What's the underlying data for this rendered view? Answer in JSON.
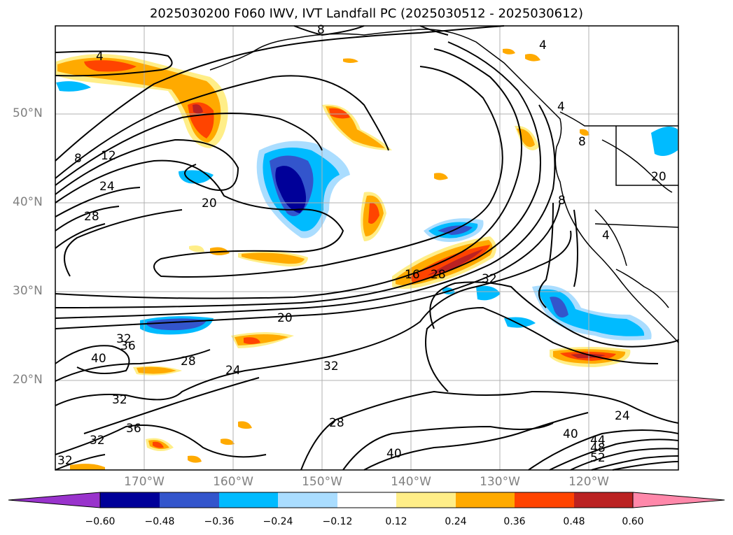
{
  "title": "2025030200 F060 IWV, IVT Landfall PC (2025030512 - 2025030612)",
  "colors": {
    "frame": "#000000",
    "grid": "#b0b0b0",
    "coast": "#000000",
    "axis_label": "#808080"
  },
  "map": {
    "lat_labels": [
      "50°N",
      "40°N",
      "30°N",
      "20°N"
    ],
    "lon_labels": [
      "170°W",
      "160°W",
      "150°W",
      "140°W",
      "130°W",
      "120°W"
    ],
    "contour_labels": [
      "4",
      "8",
      "12",
      "24",
      "28",
      "20",
      "8",
      "4",
      "4",
      "8",
      "8",
      "4",
      "20",
      "32",
      "16",
      "28",
      "32",
      "20",
      "32",
      "36",
      "40",
      "28",
      "24",
      "32",
      "28",
      "36",
      "32",
      "40",
      "32",
      "24",
      "40",
      "44",
      "48",
      "52"
    ]
  },
  "colorbar": {
    "extend": "both",
    "colors": [
      "#9933cc",
      "#000099",
      "#3355cc",
      "#00bbff",
      "#aaddff",
      "#ffffff",
      "#ffee88",
      "#ffaa00",
      "#ff4400",
      "#bb2222",
      "#ff88aa"
    ],
    "tick_labels": [
      "−0.60",
      "−0.48",
      "−0.36",
      "−0.24",
      "−0.12",
      "0.12",
      "0.24",
      "0.36",
      "0.48",
      "0.60"
    ]
  }
}
